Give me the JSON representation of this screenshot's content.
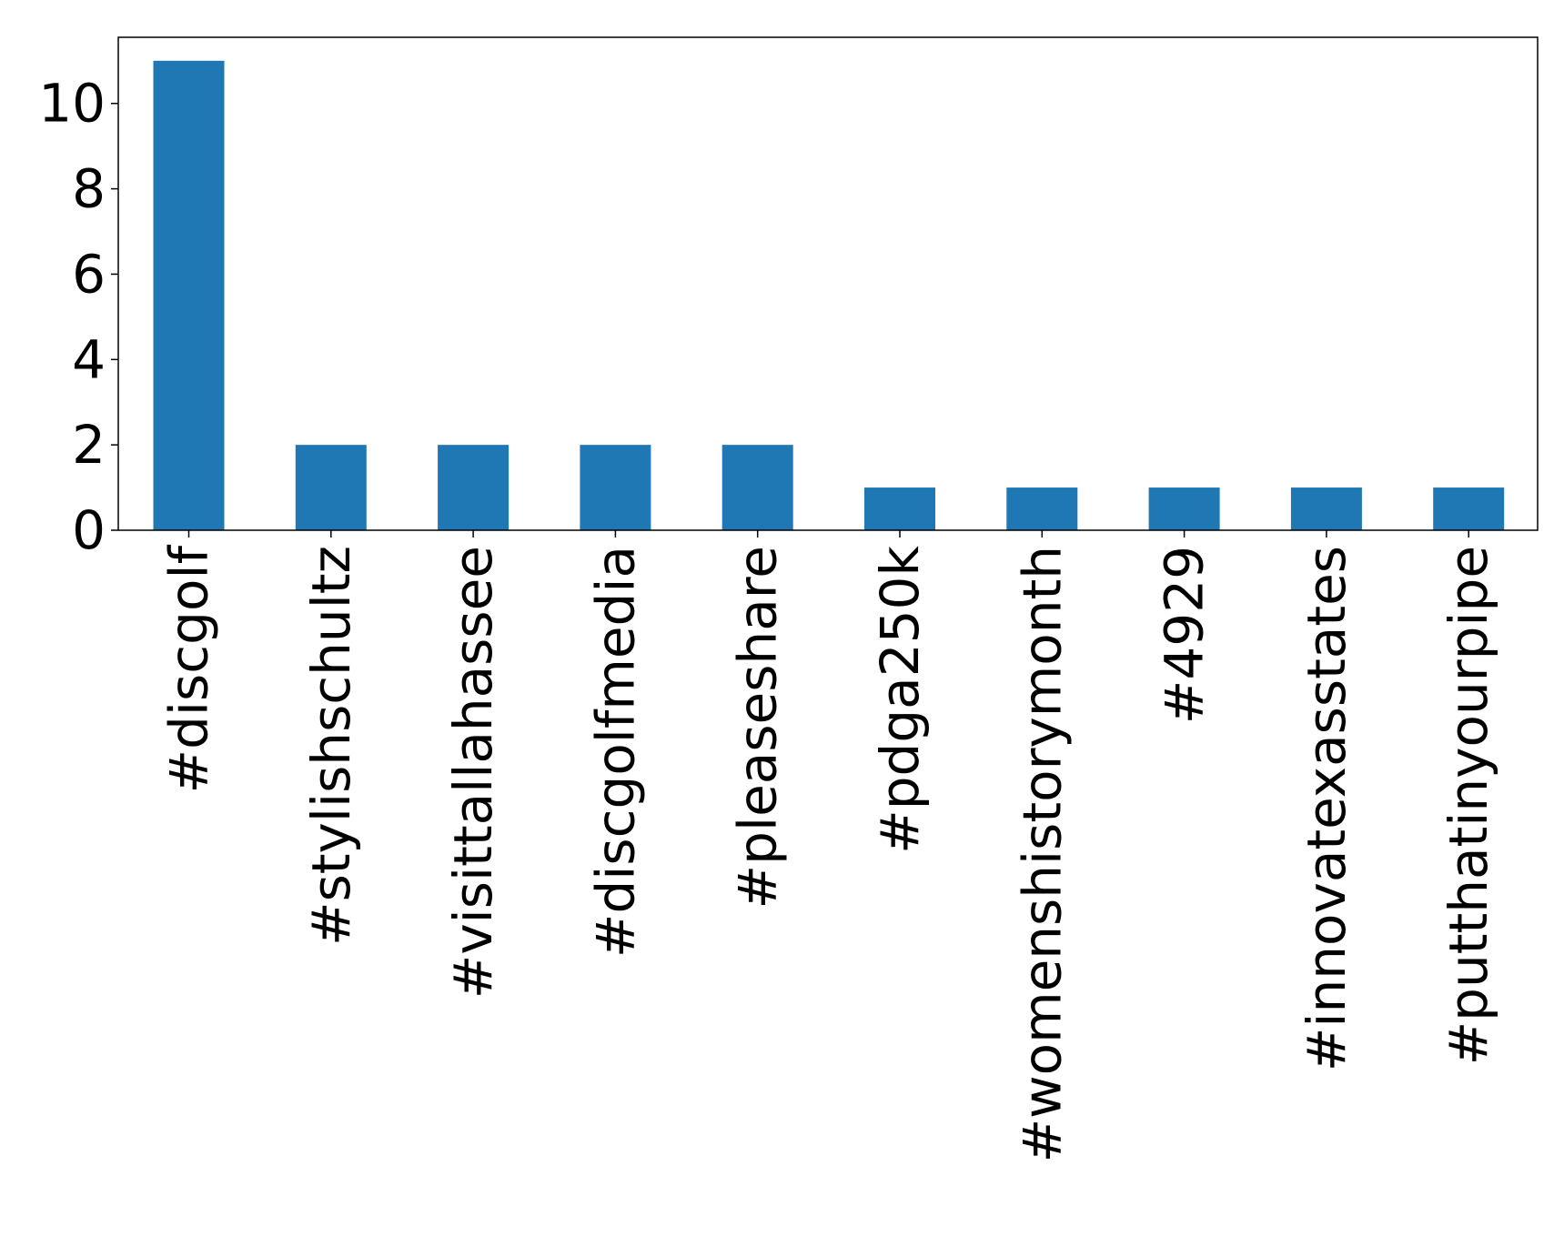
{
  "chart_data": {
    "type": "bar",
    "title": "",
    "xlabel": "",
    "ylabel": "",
    "categories": [
      "#discgolf",
      "#stylishschultz",
      "#visittallahassee",
      "#discgolfmedia",
      "#pleaseshare",
      "#pdga250k",
      "#womenshistorymonth",
      "#4929",
      "#innovatexasstates",
      "#putthatinyourpipe"
    ],
    "values": [
      11,
      2,
      2,
      2,
      2,
      1,
      1,
      1,
      1,
      1
    ],
    "ylim": [
      0,
      11.55
    ],
    "yticks": [
      0,
      2,
      4,
      6,
      8,
      10
    ],
    "grid": false,
    "legend": "none",
    "bar_color": "#1f77b4"
  }
}
